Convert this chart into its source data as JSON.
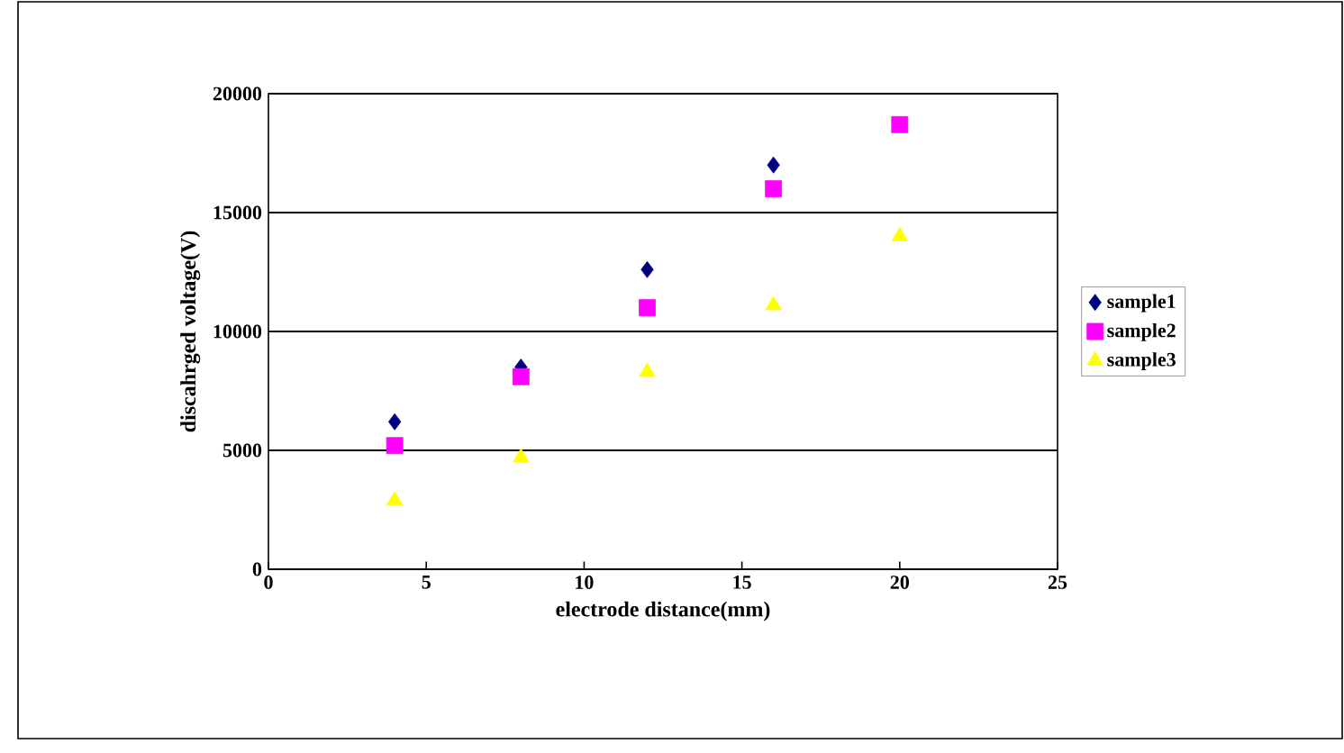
{
  "chart_data": {
    "type": "scatter",
    "xlabel": "electrode distance(mm)",
    "ylabel": "discahrged voltage(V)",
    "xlim": [
      0,
      25
    ],
    "xticks": [
      0,
      5,
      10,
      15,
      20,
      25
    ],
    "ylim": [
      0,
      20000
    ],
    "yticks": [
      0,
      5000,
      10000,
      15000,
      20000
    ],
    "grid": "y",
    "legend": "right",
    "series": [
      {
        "name": "sample1",
        "color": "#000080",
        "marker": "diamond",
        "x": [
          4,
          8,
          12,
          16
        ],
        "values": [
          6200,
          8500,
          12600,
          17000
        ]
      },
      {
        "name": "sample2",
        "color": "#ff00ff",
        "marker": "square",
        "x": [
          4,
          8,
          12,
          16,
          20
        ],
        "values": [
          5200,
          8100,
          11000,
          16000,
          18700
        ]
      },
      {
        "name": "sample3",
        "color": "#ffff00",
        "marker": "triangle",
        "x": [
          4,
          8,
          12,
          16,
          20
        ],
        "values": [
          2900,
          4700,
          8300,
          11100,
          14000
        ]
      }
    ]
  }
}
